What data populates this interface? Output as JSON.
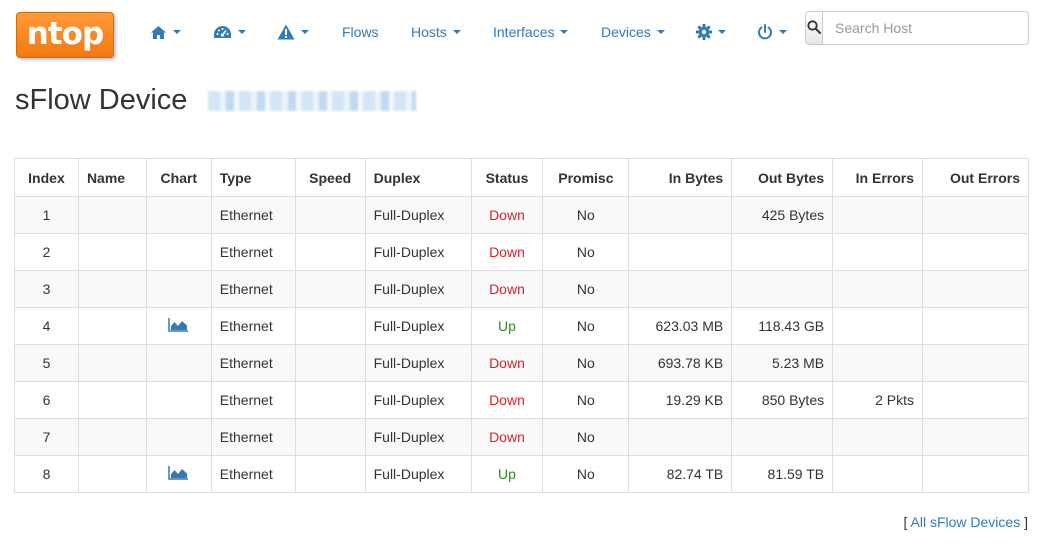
{
  "navbar": {
    "logo_text": "ntop",
    "items": [
      {
        "name": "home-menu",
        "icon": "home-icon"
      },
      {
        "name": "dashboard-menu",
        "icon": "dashboard-icon"
      },
      {
        "name": "alerts-menu",
        "icon": "warning-icon"
      },
      {
        "name": "flows-link",
        "label": "Flows"
      },
      {
        "name": "hosts-menu",
        "label": "Hosts"
      },
      {
        "name": "interfaces-menu",
        "label": "Interfaces"
      },
      {
        "name": "devices-menu",
        "label": "Devices"
      },
      {
        "name": "settings-menu",
        "icon": "gear-icon"
      },
      {
        "name": "power-menu",
        "icon": "power-icon"
      }
    ],
    "search": {
      "placeholder": "Search Host",
      "value": ""
    },
    "accent": "#337ab7",
    "logo_color": "#f58a1f"
  },
  "page": {
    "title": "sFlow Device"
  },
  "table": {
    "headers": [
      "Index",
      "Name",
      "Chart",
      "Type",
      "Speed",
      "Duplex",
      "Status",
      "Promisc",
      "In Bytes",
      "Out Bytes",
      "In Errors",
      "Out Errors"
    ],
    "rows": [
      {
        "index": "1",
        "name": "",
        "chart": false,
        "type": "Ethernet",
        "speed": "",
        "duplex": "Full-Duplex",
        "status": "Down",
        "promisc": "No",
        "in_bytes": "",
        "out_bytes": "425 Bytes",
        "in_errors": "",
        "out_errors": ""
      },
      {
        "index": "2",
        "name": "",
        "chart": false,
        "type": "Ethernet",
        "speed": "",
        "duplex": "Full-Duplex",
        "status": "Down",
        "promisc": "No",
        "in_bytes": "",
        "out_bytes": "",
        "in_errors": "",
        "out_errors": ""
      },
      {
        "index": "3",
        "name": "",
        "chart": false,
        "type": "Ethernet",
        "speed": "",
        "duplex": "Full-Duplex",
        "status": "Down",
        "promisc": "No",
        "in_bytes": "",
        "out_bytes": "",
        "in_errors": "",
        "out_errors": ""
      },
      {
        "index": "4",
        "name": "",
        "chart": true,
        "type": "Ethernet",
        "speed": "",
        "duplex": "Full-Duplex",
        "status": "Up",
        "promisc": "No",
        "in_bytes": "623.03 MB",
        "out_bytes": "118.43 GB",
        "in_errors": "",
        "out_errors": ""
      },
      {
        "index": "5",
        "name": "",
        "chart": false,
        "type": "Ethernet",
        "speed": "",
        "duplex": "Full-Duplex",
        "status": "Down",
        "promisc": "No",
        "in_bytes": "693.78 KB",
        "out_bytes": "5.23 MB",
        "in_errors": "",
        "out_errors": ""
      },
      {
        "index": "6",
        "name": "",
        "chart": false,
        "type": "Ethernet",
        "speed": "",
        "duplex": "Full-Duplex",
        "status": "Down",
        "promisc": "No",
        "in_bytes": "19.29 KB",
        "out_bytes": "850 Bytes",
        "in_errors": "2 Pkts",
        "out_errors": ""
      },
      {
        "index": "7",
        "name": "",
        "chart": false,
        "type": "Ethernet",
        "speed": "",
        "duplex": "Full-Duplex",
        "status": "Down",
        "promisc": "No",
        "in_bytes": "",
        "out_bytes": "",
        "in_errors": "",
        "out_errors": ""
      },
      {
        "index": "8",
        "name": "",
        "chart": true,
        "type": "Ethernet",
        "speed": "",
        "duplex": "Full-Duplex",
        "status": "Up",
        "promisc": "No",
        "in_bytes": "82.74 TB",
        "out_bytes": "81.59 TB",
        "in_errors": "",
        "out_errors": ""
      }
    ],
    "status_colors": {
      "Up": "#2e8b1c",
      "Down": "#d9222a"
    }
  },
  "footer": {
    "open_bracket": "[",
    "link_label": "All sFlow Devices",
    "close_bracket": "]"
  }
}
